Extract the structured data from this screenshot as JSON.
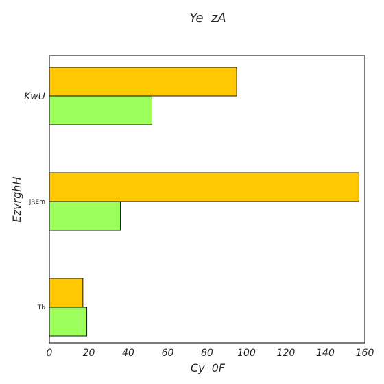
{
  "chart_data": {
    "type": "bar",
    "orientation": "horizontal",
    "title": "Ye  zA",
    "xlabel": "Cy  0F",
    "ylabel": "EzvrghH",
    "categories": [
      "KwU",
      "jREm",
      "Tb"
    ],
    "series": [
      {
        "color": "#ffc800",
        "values": [
          95,
          157,
          17
        ]
      },
      {
        "color": "#9cff5b",
        "values": [
          52,
          36,
          19
        ]
      }
    ],
    "xlim": [
      0,
      160
    ],
    "xticks": [
      0,
      20,
      40,
      60,
      80,
      100,
      120,
      140,
      160
    ],
    "grid": false,
    "legend": "none"
  }
}
